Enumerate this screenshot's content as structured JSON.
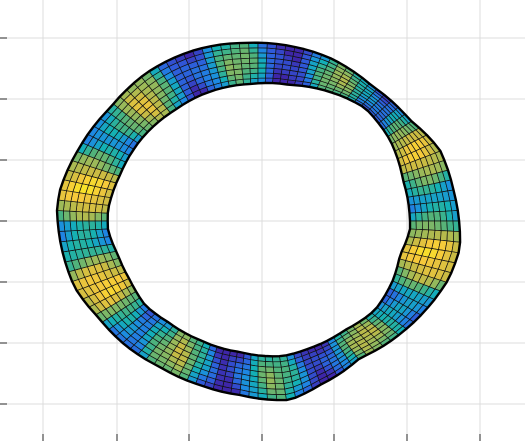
{
  "figure": {
    "type": "3d-surface",
    "shape": "closed ring (tube) viewed from above",
    "colormap": [
      "#3e26a8",
      "#2f59d9",
      "#1d8ae3",
      "#13b1b5",
      "#4ab27e",
      "#8fb95f",
      "#c9bb43",
      "#f6c93b",
      "#f9e726"
    ],
    "grid": true,
    "axes_tick_labels_visible": false,
    "background": "#ffffff",
    "edge_color": "#000000"
  }
}
